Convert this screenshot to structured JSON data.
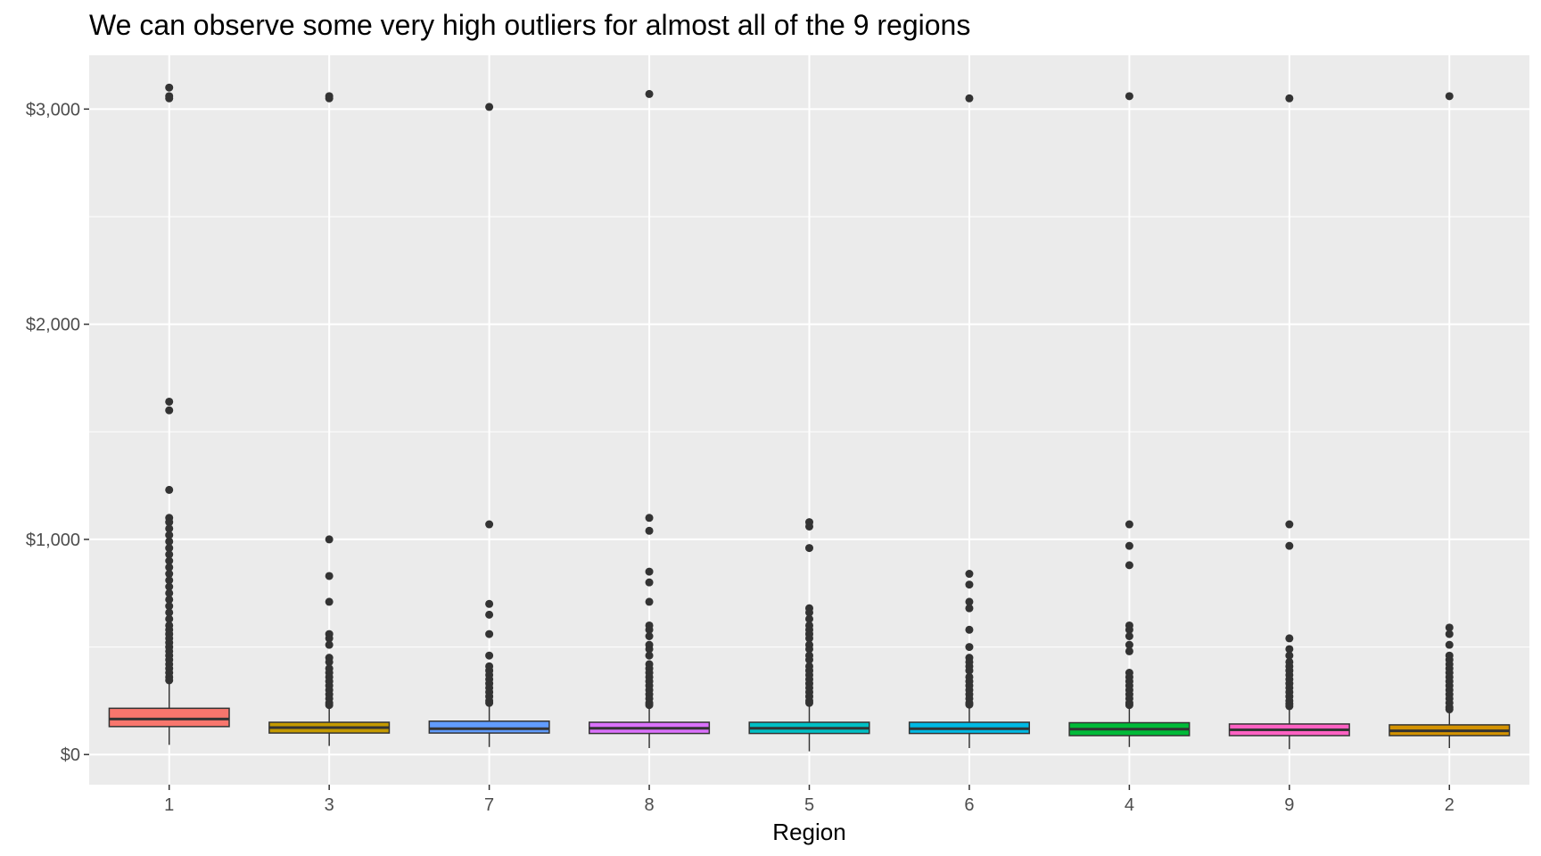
{
  "chart_data": {
    "type": "boxplot",
    "title": "We can observe some very high outliers for almost all of the 9 regions",
    "xlabel": "Region",
    "ylabel": "",
    "ylim": [
      -140,
      3250
    ],
    "y_ticks": [
      0,
      1000,
      2000,
      3000
    ],
    "y_tick_labels": [
      "$0",
      "$1,000",
      "$2,000",
      "$3,000"
    ],
    "y_minor_ticks": [
      500,
      1500,
      2500
    ],
    "grid": true,
    "legend": "none",
    "panel_background": "#ebebeb",
    "grid_color": "#ffffff",
    "categories": [
      "1",
      "3",
      "7",
      "8",
      "5",
      "6",
      "4",
      "9",
      "2"
    ],
    "boxes": [
      {
        "category": "1",
        "color": "#F8766D",
        "min": 45,
        "q1": 130,
        "median": 165,
        "q3": 215,
        "max": 340,
        "outliers": [
          3100,
          3060,
          3050,
          1640,
          1600,
          1230,
          1100,
          1080,
          1050,
          1020,
          990,
          960,
          930,
          900,
          870,
          840,
          810,
          780,
          750,
          720,
          690,
          660,
          630,
          600,
          580,
          560,
          540,
          520,
          500,
          480,
          460,
          440,
          420,
          400,
          380,
          360,
          345
        ]
      },
      {
        "category": "3",
        "color": "#C49A00",
        "min": 40,
        "q1": 100,
        "median": 125,
        "q3": 150,
        "max": 225,
        "outliers": [
          3060,
          3050,
          1000,
          830,
          710,
          560,
          540,
          510,
          450,
          430,
          400,
          380,
          360,
          340,
          320,
          300,
          280,
          260,
          240,
          230
        ]
      },
      {
        "category": "7",
        "color": "#619CFF",
        "min": 35,
        "q1": 100,
        "median": 120,
        "q3": 155,
        "max": 230,
        "outliers": [
          3010,
          1070,
          700,
          650,
          560,
          460,
          410,
          390,
          370,
          350,
          330,
          310,
          290,
          270,
          250,
          240
        ]
      },
      {
        "category": "8",
        "color": "#DB72FB",
        "min": 30,
        "q1": 98,
        "median": 122,
        "q3": 150,
        "max": 225,
        "outliers": [
          3070,
          1100,
          1040,
          850,
          800,
          710,
          600,
          580,
          550,
          510,
          490,
          460,
          420,
          400,
          380,
          360,
          340,
          320,
          300,
          280,
          260,
          240,
          230
        ]
      },
      {
        "category": "5",
        "color": "#00BFC4",
        "min": 15,
        "q1": 98,
        "median": 122,
        "q3": 150,
        "max": 230,
        "outliers": [
          1080,
          1060,
          960,
          680,
          660,
          630,
          600,
          580,
          560,
          540,
          510,
          490,
          460,
          440,
          410,
          390,
          370,
          350,
          330,
          310,
          290,
          270,
          250,
          240
        ]
      },
      {
        "category": "6",
        "color": "#00B9E3",
        "min": 30,
        "q1": 98,
        "median": 120,
        "q3": 150,
        "max": 228,
        "outliers": [
          3050,
          840,
          790,
          710,
          680,
          580,
          500,
          450,
          430,
          410,
          390,
          360,
          340,
          320,
          300,
          280,
          260,
          240,
          232
        ]
      },
      {
        "category": "4",
        "color": "#00BA38",
        "min": 35,
        "q1": 88,
        "median": 118,
        "q3": 148,
        "max": 225,
        "outliers": [
          3060,
          1070,
          970,
          880,
          600,
          580,
          550,
          510,
          480,
          380,
          360,
          340,
          320,
          300,
          280,
          260,
          240,
          230
        ]
      },
      {
        "category": "9",
        "color": "#FF61C3",
        "min": 25,
        "q1": 88,
        "median": 115,
        "q3": 142,
        "max": 220,
        "outliers": [
          3050,
          1070,
          970,
          540,
          490,
          460,
          430,
          410,
          390,
          370,
          350,
          330,
          310,
          290,
          270,
          250,
          235,
          225
        ]
      },
      {
        "category": "2",
        "color": "#D39200",
        "min": 30,
        "q1": 88,
        "median": 110,
        "q3": 138,
        "max": 205,
        "outliers": [
          3060,
          590,
          560,
          510,
          460,
          440,
          420,
          400,
          380,
          360,
          340,
          320,
          300,
          280,
          260,
          240,
          220,
          210
        ]
      }
    ]
  }
}
